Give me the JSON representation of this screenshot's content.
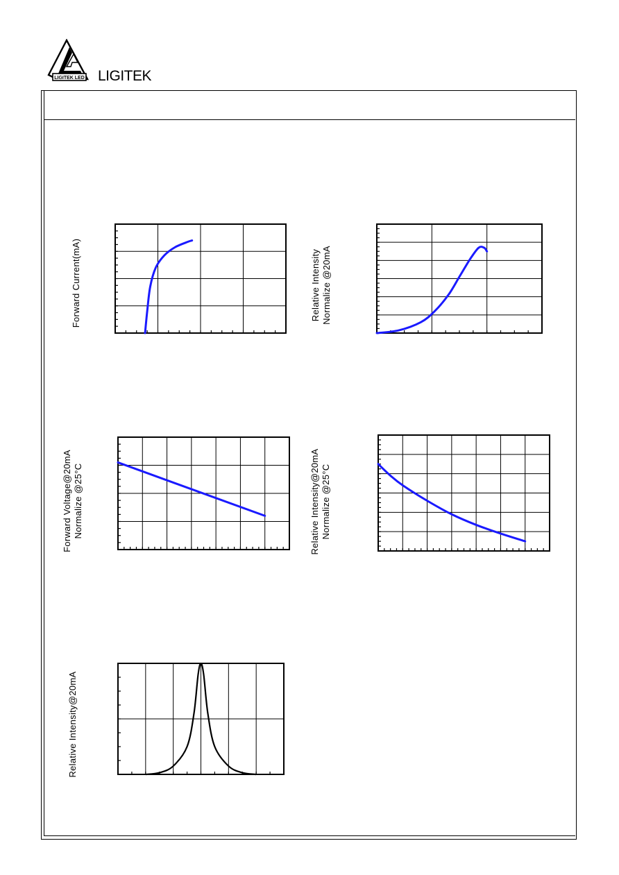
{
  "header": {
    "brand": "LIGITEK",
    "logo_text": "LIGITEK LED",
    "logo_icon": "ligitek-logo-icon"
  },
  "colors": {
    "curve_accent": "#1a1aff",
    "curve_dark": "#000000"
  },
  "charts": {
    "forward_current": {
      "ylabel_lines": [
        "Forward Current(mA)"
      ]
    },
    "relative_intensity_current": {
      "ylabel_lines": [
        "Relative Intensity",
        "Normalize @20mA"
      ]
    },
    "forward_voltage_temp": {
      "ylabel_lines": [
        "Forward Voltage@20mA",
        "Normalize @25°C"
      ]
    },
    "relative_intensity_temp": {
      "ylabel_lines": [
        "Relative Intensity@20mA",
        "Normalize @25°C"
      ]
    },
    "spectrum": {
      "ylabel_lines": [
        "Relative Intensity@20mA"
      ]
    }
  },
  "chart_data": [
    {
      "id": "forward_current",
      "type": "line",
      "ylabel": "Forward Current(mA)",
      "xlim": [
        0,
        4
      ],
      "ylim": [
        0,
        4
      ],
      "grid": true,
      "series": [
        {
          "x": [
            0.7,
            0.75,
            0.82,
            0.95,
            1.15,
            1.4,
            1.7,
            1.8
          ],
          "y": [
            0,
            0.8,
            1.7,
            2.4,
            2.85,
            3.15,
            3.35,
            3.4
          ]
        }
      ]
    },
    {
      "id": "relative_intensity_current",
      "type": "line",
      "ylabel": "Relative Intensity Normalize @20mA",
      "xlim": [
        0,
        3
      ],
      "ylim": [
        0,
        6
      ],
      "grid": true,
      "series": [
        {
          "x": [
            0,
            0.4,
            0.8,
            1.05,
            1.3,
            1.5,
            1.7,
            1.85,
            1.95,
            2.0
          ],
          "y": [
            0,
            0.15,
            0.6,
            1.2,
            2.1,
            3.1,
            4.1,
            4.7,
            4.7,
            4.5
          ]
        }
      ]
    },
    {
      "id": "forward_voltage_temp",
      "type": "line",
      "ylabel": "Forward Voltage@20mA Normalize @25°C",
      "xlim": [
        0,
        7
      ],
      "ylim": [
        0,
        4
      ],
      "grid": true,
      "series": [
        {
          "x": [
            0,
            6
          ],
          "y": [
            3.1,
            1.2
          ]
        }
      ]
    },
    {
      "id": "relative_intensity_temp",
      "type": "line",
      "ylabel": "Relative Intensity@20mA Normalize @25°C",
      "xlim": [
        0,
        7
      ],
      "ylim": [
        0,
        6
      ],
      "grid": true,
      "series": [
        {
          "x": [
            0,
            0.5,
            1,
            2,
            3,
            4,
            5,
            6
          ],
          "y": [
            4.5,
            3.9,
            3.4,
            2.6,
            1.9,
            1.35,
            0.9,
            0.5
          ]
        }
      ]
    },
    {
      "id": "spectrum",
      "type": "line",
      "ylabel": "Relative Intensity@20mA",
      "xlim": [
        0,
        6
      ],
      "ylim": [
        0,
        2
      ],
      "grid": true,
      "series": [
        {
          "x": [
            1,
            1.5,
            2,
            2.5,
            2.75,
            2.9,
            3.0,
            3.1,
            3.25,
            3.5,
            4,
            4.5,
            5
          ],
          "y": [
            0,
            0.03,
            0.15,
            0.5,
            1.1,
            1.8,
            2.0,
            1.8,
            1.1,
            0.5,
            0.15,
            0.03,
            0
          ]
        }
      ]
    }
  ]
}
